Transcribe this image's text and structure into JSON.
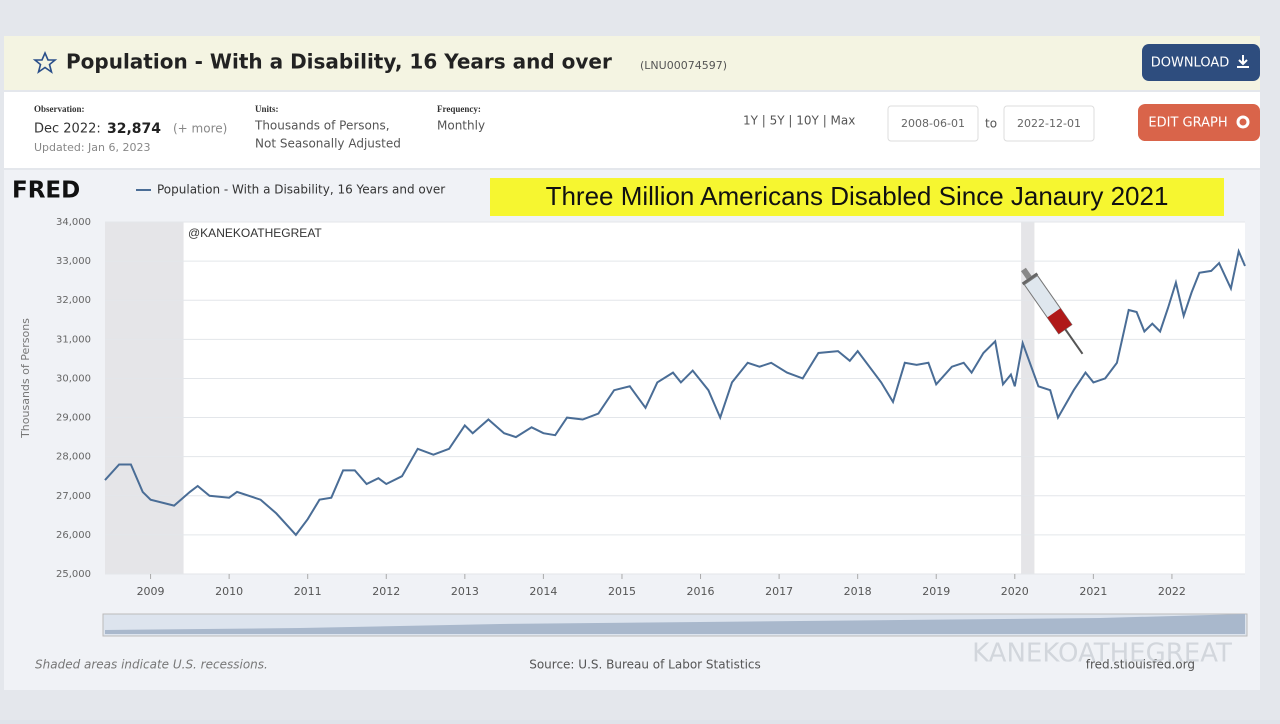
{
  "header": {
    "title": "Population - With a Disability, 16 Years and over",
    "series_id": "(LNU00074597)",
    "download": "DOWNLOAD"
  },
  "meta": {
    "observation_label": "Observation:",
    "observation_date": "Dec 2022:",
    "observation_value": "32,874",
    "more": "(+ more)",
    "updated": "Updated: Jan 6, 2023",
    "units_label": "Units:",
    "units_line1": "Thousands of Persons,",
    "units_line2": "Not Seasonally Adjusted",
    "frequency_label": "Frequency:",
    "frequency": "Monthly",
    "ranges": "1Y | 5Y | 10Y | Max",
    "start_date": "2008-06-01",
    "to": "to",
    "end_date": "2022-12-01",
    "edit": "EDIT GRAPH"
  },
  "chart_data": {
    "type": "line",
    "logo": "FRED",
    "title": "Three Million Americans Disabled Since Janaury 2021",
    "annotation": "@KANEKOATHEGREAT",
    "ylabel": "Thousands of Persons",
    "x": [
      2008.42,
      2008.6,
      2008.75,
      2008.9,
      2009.0,
      2009.3,
      2009.5,
      2009.6,
      2009.75,
      2010.0,
      2010.1,
      2010.4,
      2010.6,
      2010.85,
      2011.0,
      2011.15,
      2011.3,
      2011.45,
      2011.6,
      2011.75,
      2011.9,
      2012.0,
      2012.2,
      2012.4,
      2012.6,
      2012.8,
      2013.0,
      2013.1,
      2013.3,
      2013.5,
      2013.65,
      2013.85,
      2014.0,
      2014.15,
      2014.3,
      2014.5,
      2014.7,
      2014.9,
      2015.1,
      2015.3,
      2015.45,
      2015.65,
      2015.75,
      2015.9,
      2016.1,
      2016.25,
      2016.4,
      2016.6,
      2016.75,
      2016.9,
      2017.1,
      2017.3,
      2017.5,
      2017.75,
      2017.9,
      2018.0,
      2018.3,
      2018.45,
      2018.6,
      2018.75,
      2018.9,
      2019.0,
      2019.2,
      2019.35,
      2019.45,
      2019.6,
      2019.75,
      2019.85,
      2019.95,
      2020.0,
      2020.1,
      2020.3,
      2020.45,
      2020.55,
      2020.75,
      2020.9,
      2021.0,
      2021.15,
      2021.3,
      2021.45,
      2021.55,
      2021.65,
      2021.75,
      2021.85,
      2021.95,
      2022.05,
      2022.15,
      2022.25,
      2022.35,
      2022.5,
      2022.6,
      2022.75,
      2022.85,
      2022.93
    ],
    "series": [
      {
        "name": "Population - With a Disability, 16 Years and over",
        "color": "#4a6d96",
        "values": [
          27400,
          27800,
          27800,
          27100,
          26900,
          26750,
          27100,
          27250,
          27000,
          26950,
          27100,
          26900,
          26550,
          26000,
          26400,
          26900,
          26950,
          27650,
          27650,
          27300,
          27450,
          27300,
          27500,
          28200,
          28050,
          28200,
          28800,
          28600,
          28950,
          28600,
          28500,
          28750,
          28600,
          28550,
          29000,
          28950,
          29100,
          29700,
          29800,
          29250,
          29900,
          30150,
          29900,
          30200,
          29700,
          29000,
          29900,
          30400,
          30300,
          30400,
          30150,
          30000,
          30650,
          30700,
          30450,
          30700,
          29900,
          29400,
          30400,
          30350,
          30400,
          29850,
          30300,
          30400,
          30150,
          30650,
          30950,
          29850,
          30100,
          29800,
          30900,
          29800,
          29700,
          29000,
          29700,
          30150,
          29900,
          30000,
          30400,
          31750,
          31700,
          31200,
          31400,
          31200,
          31800,
          32450,
          31600,
          32200,
          32700,
          32750,
          32950,
          32300,
          33250,
          32874
        ]
      }
    ],
    "recessions": [
      [
        2008.42,
        2009.42
      ],
      [
        2020.08,
        2020.25
      ]
    ],
    "xlim": [
      2008.42,
      2022.93
    ],
    "xticks": [
      2009,
      2010,
      2011,
      2012,
      2013,
      2014,
      2015,
      2016,
      2017,
      2018,
      2019,
      2020,
      2021,
      2022
    ],
    "ylim": [
      25000,
      34000
    ],
    "yticks": [
      {
        "value": 25000,
        "label": "25,000"
      },
      {
        "value": 26000,
        "label": "26,000"
      },
      {
        "value": 27000,
        "label": "27,000"
      },
      {
        "value": 28000,
        "label": "28,000"
      },
      {
        "value": 29000,
        "label": "29,000"
      },
      {
        "value": 30000,
        "label": "30,000"
      },
      {
        "value": 31000,
        "label": "31,000"
      },
      {
        "value": 32000,
        "label": "32,000"
      },
      {
        "value": 33000,
        "label": "33,000"
      },
      {
        "value": 34000,
        "label": "34,000"
      }
    ],
    "grid": true
  },
  "footer": {
    "note": "Shaded areas indicate U.S. recessions.",
    "source": "Source: U.S. Bureau of Labor Statistics",
    "site": "fred.stlouisfed.org",
    "watermark": "KANEKOATHEGREAT"
  }
}
